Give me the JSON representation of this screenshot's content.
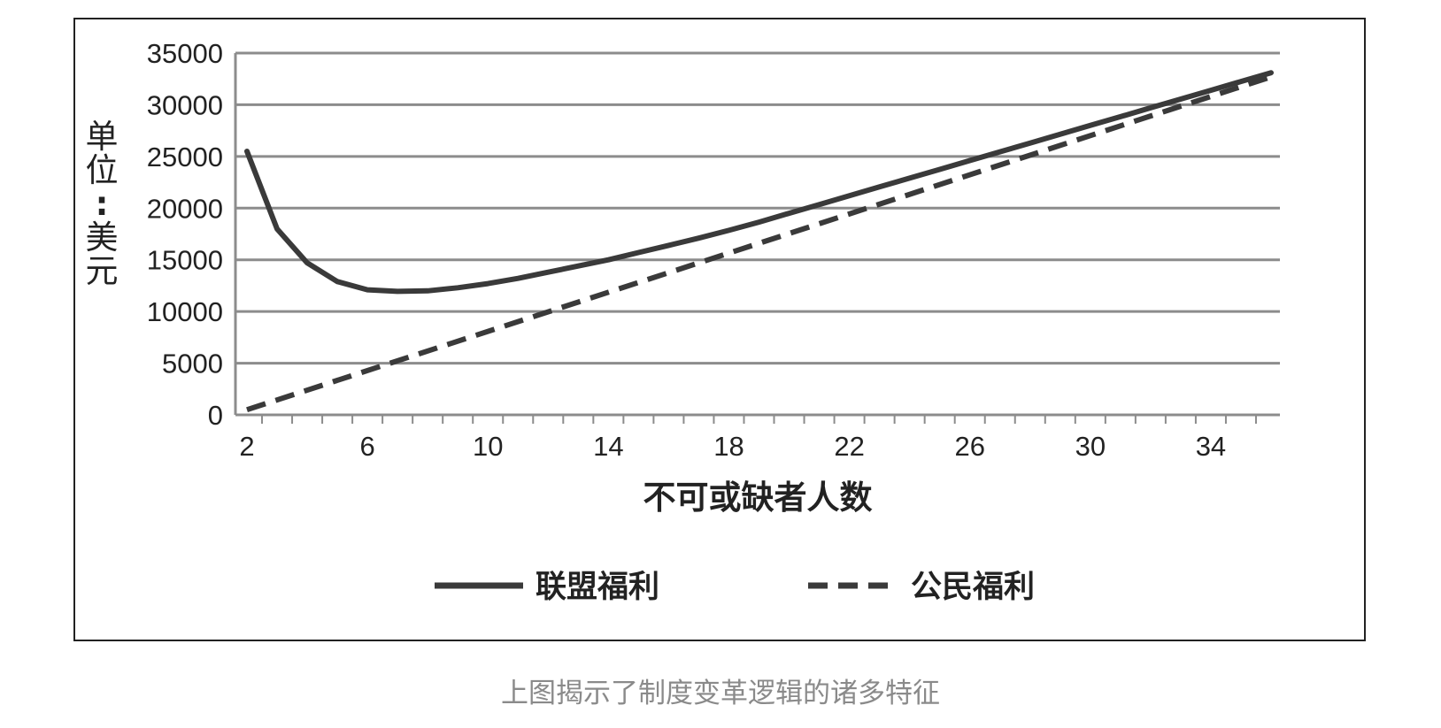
{
  "chart_data": {
    "type": "line",
    "ylabel": "单位：美元",
    "xlabel": "不可或缺者人数",
    "ylim": [
      0,
      35000
    ],
    "y_ticks": [
      0,
      5000,
      10000,
      15000,
      20000,
      25000,
      30000,
      35000
    ],
    "xlim": [
      2,
      36
    ],
    "x_tick_labels": [
      2,
      6,
      10,
      14,
      18,
      22,
      26,
      30,
      34
    ],
    "grid": true,
    "legend_position": "bottom",
    "series": [
      {
        "name": "联盟福利",
        "style": "solid",
        "color": "#3a3a3a",
        "x": [
          2,
          3,
          4,
          5,
          6,
          7,
          8,
          9,
          10,
          11,
          12,
          13,
          14,
          15,
          16,
          17,
          18,
          19,
          20,
          21,
          22,
          23,
          24,
          25,
          26,
          27,
          28,
          29,
          30,
          31,
          32,
          33,
          34,
          35,
          36
        ],
        "values": [
          25500,
          18000,
          14700,
          12900,
          12100,
          11950,
          12000,
          12300,
          12700,
          13200,
          13800,
          14400,
          15000,
          15700,
          16400,
          17100,
          17850,
          18650,
          19500,
          20350,
          21200,
          22050,
          22900,
          23750,
          24600,
          25450,
          26300,
          27150,
          28000,
          28850,
          29700,
          30550,
          31400,
          32250,
          33100
        ]
      },
      {
        "name": "公民福利",
        "style": "dashed",
        "color": "#3a3a3a",
        "x": [
          2,
          36
        ],
        "values": [
          500,
          32700
        ]
      }
    ]
  },
  "caption": "上图揭示了制度变革逻辑的诸多特征"
}
